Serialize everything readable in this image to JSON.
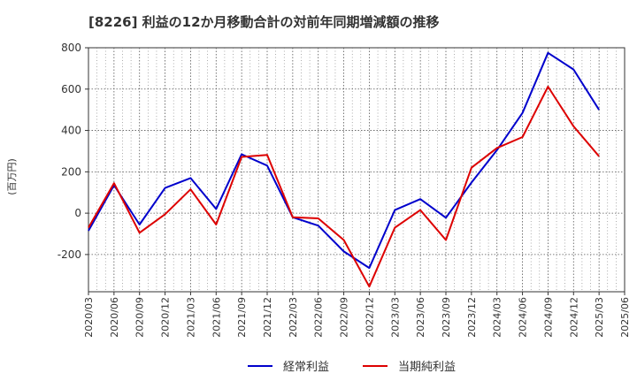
{
  "chart_data": {
    "type": "line",
    "title": "[8226]  利益の12か月移動合計の対前年同期増減額の推移",
    "ylabel": "(百万円)",
    "xlabel": "",
    "ylim": [
      -380,
      800
    ],
    "yticks": [
      -200,
      0,
      200,
      400,
      600,
      800
    ],
    "ytick_labels": [
      "-200",
      "0",
      "200",
      "400",
      "600",
      "800"
    ],
    "categories": [
      "2020/03",
      "2020/06",
      "2020/09",
      "2020/12",
      "2021/03",
      "2021/06",
      "2021/09",
      "2021/12",
      "2022/03",
      "2022/06",
      "2022/09",
      "2022/12",
      "2023/03",
      "2023/06",
      "2023/09",
      "2023/12",
      "2024/03",
      "2024/06",
      "2024/09",
      "2024/12",
      "2025/03",
      "2025/06"
    ],
    "grid": true,
    "legend_position": "bottom",
    "series": [
      {
        "name": "経常利益",
        "color": "#0000cc",
        "values": [
          -85,
          135,
          -55,
          122,
          170,
          20,
          285,
          230,
          -20,
          -60,
          -185,
          -265,
          15,
          68,
          -22,
          148,
          305,
          485,
          775,
          695,
          500,
          null
        ]
      },
      {
        "name": "当期純利益",
        "color": "#dd0000",
        "values": [
          -70,
          145,
          -95,
          -5,
          115,
          -55,
          272,
          282,
          -20,
          -25,
          -130,
          -355,
          -70,
          15,
          -130,
          220,
          315,
          368,
          612,
          420,
          275,
          null
        ]
      }
    ]
  }
}
